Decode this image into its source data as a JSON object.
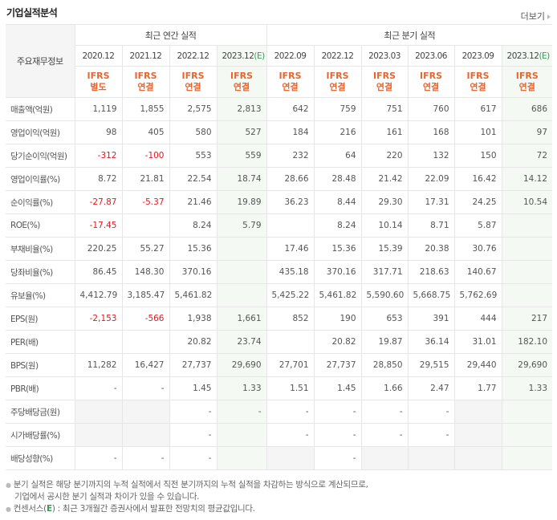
{
  "title": "기업실적분석",
  "more_link": "더보기",
  "header": {
    "stub": "주요재무정보",
    "group_annual": "최근 연간 실적",
    "group_quarter": "최근 분기 실적",
    "periods": [
      "2020.12",
      "2021.12",
      "2022.12",
      "2023.12",
      "2022.09",
      "2022.12",
      "2023.03",
      "2023.06",
      "2023.09",
      "2023.12"
    ],
    "estimate_suffix": "(E)",
    "ifrs_top": "IFRS",
    "ifrs_bottom": [
      "별도",
      "연결",
      "연결",
      "연결",
      "연결",
      "연결",
      "연결",
      "연결",
      "연결",
      "연결"
    ]
  },
  "rows": [
    {
      "label": "매출액(억원)",
      "values": [
        "1,119",
        "1,855",
        "2,575",
        "2,813",
        "642",
        "759",
        "751",
        "760",
        "617",
        "686"
      ]
    },
    {
      "label": "영업이익(억원)",
      "values": [
        "98",
        "405",
        "580",
        "527",
        "184",
        "216",
        "161",
        "168",
        "101",
        "97"
      ]
    },
    {
      "label": "당기순이익(억원)",
      "values": [
        "-312",
        "-100",
        "553",
        "559",
        "232",
        "64",
        "220",
        "132",
        "150",
        "72"
      ]
    },
    {
      "label": "영업이익률(%)",
      "values": [
        "8.72",
        "21.81",
        "22.54",
        "18.74",
        "28.66",
        "28.48",
        "21.42",
        "22.09",
        "16.42",
        "14.12"
      ]
    },
    {
      "label": "순이익률(%)",
      "values": [
        "-27.87",
        "-5.37",
        "21.46",
        "19.89",
        "36.23",
        "8.44",
        "29.30",
        "17.31",
        "24.25",
        "10.54"
      ]
    },
    {
      "label": "ROE(%)",
      "values": [
        "-17.45",
        "",
        "8.24",
        "5.79",
        "",
        "8.24",
        "10.14",
        "8.71",
        "5.87",
        ""
      ]
    },
    {
      "label": "부채비율(%)",
      "values": [
        "220.25",
        "55.27",
        "15.36",
        "",
        "17.46",
        "15.36",
        "15.39",
        "20.38",
        "30.76",
        ""
      ]
    },
    {
      "label": "당좌비율(%)",
      "values": [
        "86.45",
        "148.30",
        "370.16",
        "",
        "435.18",
        "370.16",
        "317.71",
        "218.63",
        "140.67",
        ""
      ]
    },
    {
      "label": "유보율(%)",
      "values": [
        "4,412.79",
        "3,185.47",
        "5,461.82",
        "",
        "5,425.22",
        "5,461.82",
        "5,590.60",
        "5,668.75",
        "5,762.69",
        ""
      ]
    },
    {
      "label": "EPS(원)",
      "values": [
        "-2,153",
        "-566",
        "1,938",
        "1,661",
        "852",
        "190",
        "653",
        "391",
        "444",
        "217"
      ]
    },
    {
      "label": "PER(배)",
      "values": [
        "",
        "",
        "20.82",
        "23.74",
        "",
        "20.82",
        "19.87",
        "36.14",
        "31.01",
        "182.10"
      ]
    },
    {
      "label": "BPS(원)",
      "values": [
        "11,282",
        "16,427",
        "27,737",
        "29,690",
        "27,701",
        "27,737",
        "28,850",
        "29,515",
        "29,440",
        "29,690"
      ]
    },
    {
      "label": "PBR(배)",
      "values": [
        "-",
        "-",
        "1.45",
        "1.33",
        "1.51",
        "1.45",
        "1.66",
        "2.47",
        "1.77",
        "1.33"
      ]
    },
    {
      "label": "주당배당금(원)",
      "values": [
        "",
        "",
        "-",
        "-",
        "-",
        "-",
        "-",
        "-",
        "",
        ""
      ]
    },
    {
      "label": "시가배당률(%)",
      "values": [
        "",
        "",
        "-",
        "",
        "-",
        "-",
        "-",
        "-",
        "",
        ""
      ]
    },
    {
      "label": "배당성향(%)",
      "values": [
        "-",
        "-",
        "-",
        "",
        "",
        "-",
        "",
        "",
        "",
        ""
      ]
    }
  ],
  "notes": {
    "line1": "분기 실적은 해당 분기까지의 누적 실적에서 직전 분기까지의 누적 실적을 차감하는 방식으로 계산되므로,",
    "line2": "기업에서 공시한 분기 실적과 차이가 있을 수 있습니다.",
    "line3_prefix": "컨센서스(",
    "line3_e": "E",
    "line3_suffix": ") : 최근 3개월간 증권사에서 발표한 전망치의 평균값입니다."
  },
  "colors": {
    "ifrs": "#e8652e",
    "negative": "#e3171d",
    "estimate": "#3a9a55",
    "estimate_bg": "#f4f9f4"
  }
}
